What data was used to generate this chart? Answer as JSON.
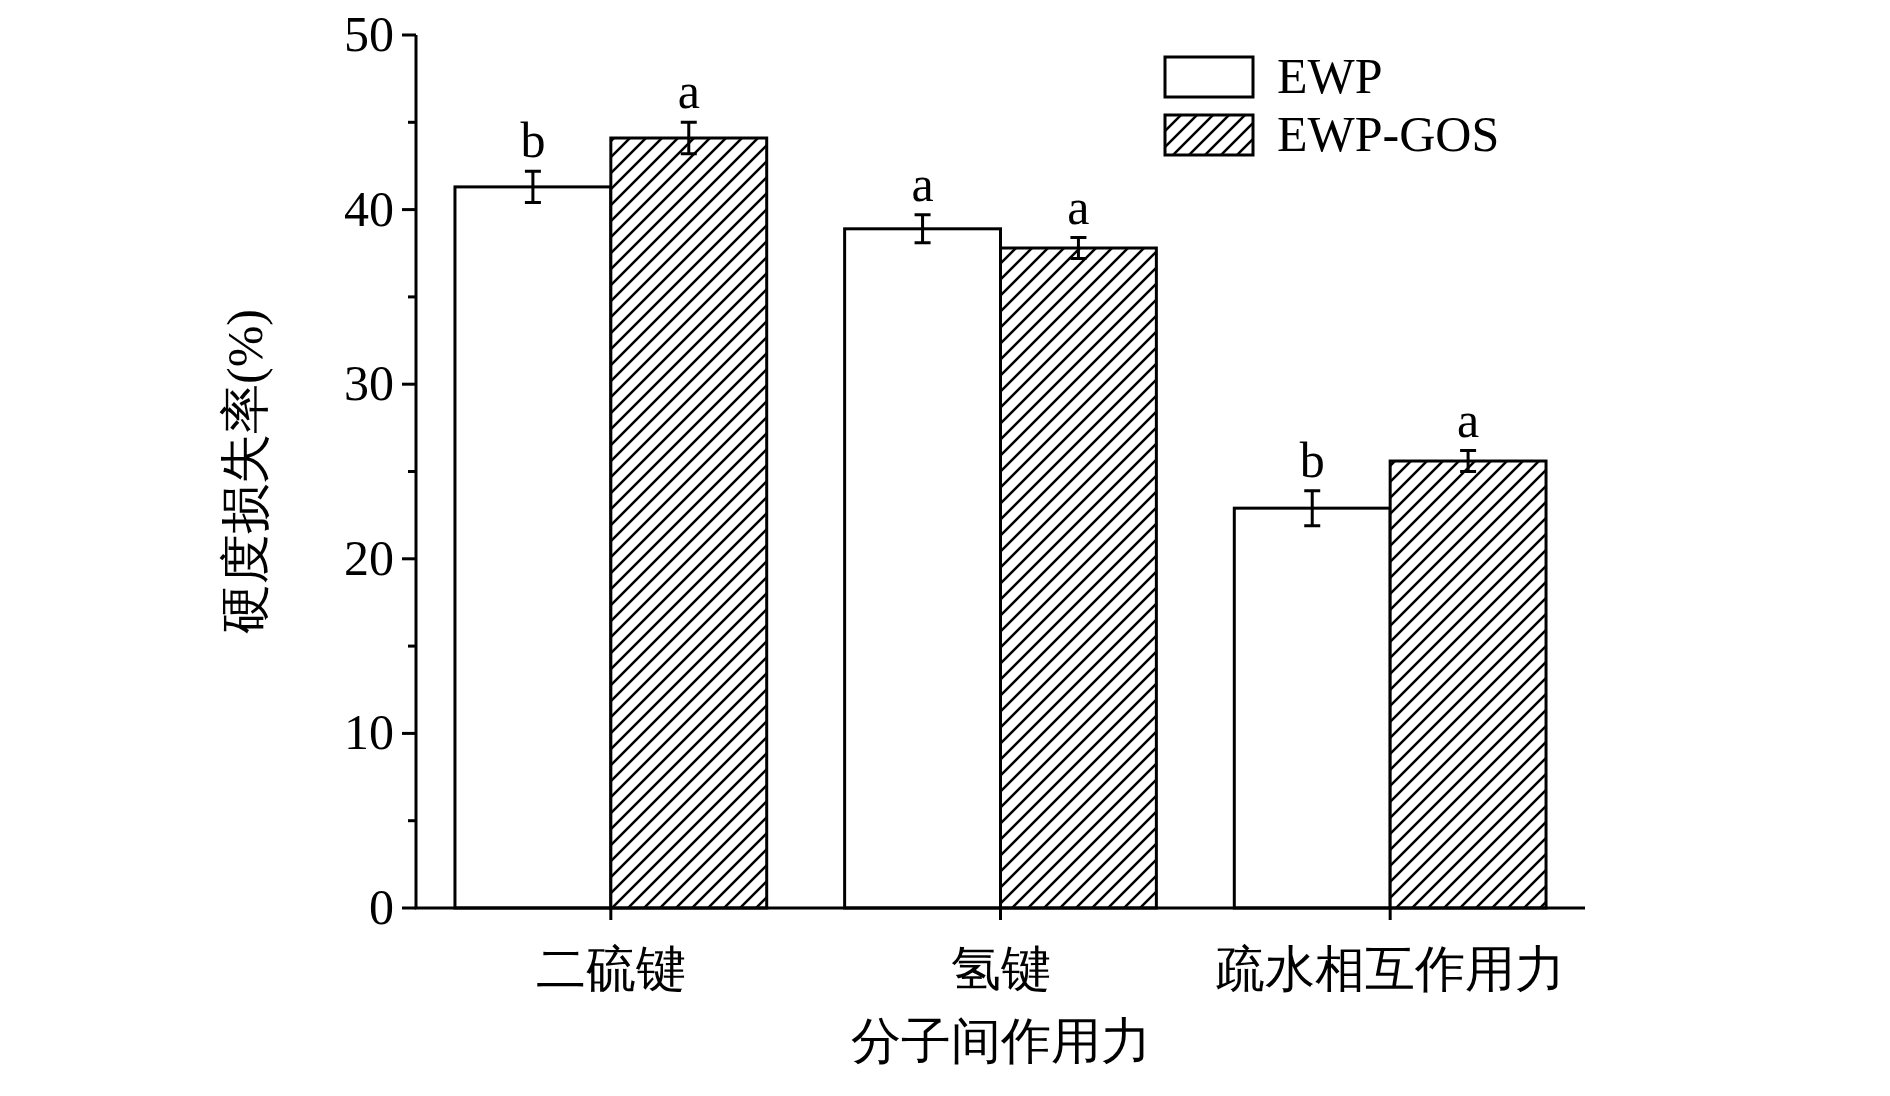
{
  "chart_data": {
    "type": "bar",
    "xlabel": "分子间作用力",
    "ylabel": "硬度损失率(%)",
    "categories": [
      "二硫键",
      "氢键",
      "疏水相互作用力"
    ],
    "series": [
      {
        "name": "EWP",
        "color": "#ffffff",
        "values": [
          41.3,
          38.9,
          22.9
        ],
        "errors": [
          0.9,
          0.8,
          1.0
        ]
      },
      {
        "name": "EWP-GOS",
        "color": "#000000",
        "values": [
          44.1,
          37.8,
          25.6
        ],
        "errors": [
          0.9,
          0.6,
          0.6
        ]
      }
    ],
    "ylim": [
      0,
      50
    ],
    "yticks": [
      0,
      10,
      20,
      30,
      40,
      50
    ],
    "legend": "top right",
    "annotations": [
      {
        "text": "b",
        "x": "二硫键",
        "y": 41.3
      },
      {
        "text": "a",
        "x": "二硫键",
        "y": 44.1
      },
      {
        "text": "a",
        "x": "氢键",
        "y": 38.9
      },
      {
        "text": "a",
        "x": "氢键",
        "y": 37.8
      },
      {
        "text": "b",
        "x": "疏水相互作用力",
        "y": 22.9
      },
      {
        "text": "a",
        "x": "疏水相互作用力",
        "y": 25.6
      }
    ]
  }
}
